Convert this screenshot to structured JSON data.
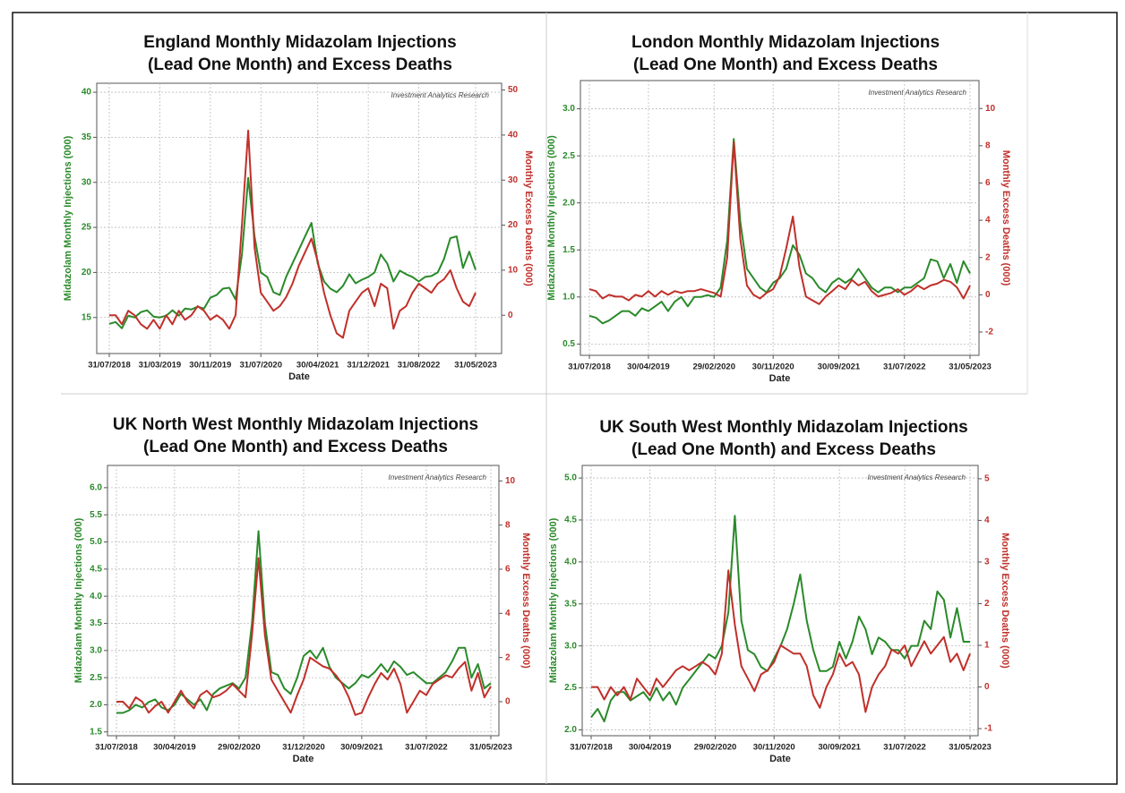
{
  "chart_data": [
    {
      "type": "line",
      "title": [
        "England Monthly Midazolam Injections",
        "(Lead One Month) and Excess Deaths"
      ],
      "x_label": "Date",
      "y_label": "Midazolam Monthly Injections (000)",
      "y2_label": "Monthly Excess Deaths (000)",
      "annotation": "Investment Analytics Research",
      "categories": [
        "31/07/2018",
        null,
        null,
        null,
        null,
        null,
        null,
        null,
        "31/03/2019",
        null,
        null,
        null,
        null,
        null,
        null,
        null,
        "30/11/2019",
        null,
        null,
        null,
        null,
        null,
        null,
        null,
        "31/07/2020",
        null,
        null,
        null,
        null,
        null,
        null,
        null,
        null,
        "30/04/2021",
        null,
        null,
        null,
        null,
        null,
        null,
        null,
        "31/12/2021",
        null,
        null,
        null,
        null,
        null,
        null,
        null,
        "31/08/2022",
        null,
        null,
        null,
        null,
        null,
        null,
        null,
        null,
        "31/05/2023"
      ],
      "series": [
        {
          "name": "Midazolam Monthly Injections (000)",
          "color": "#2a8a2a",
          "values": [
            14.3,
            14.5,
            13.8,
            15.2,
            15.0,
            15.6,
            15.8,
            15.1,
            15.0,
            15.2,
            15.8,
            15.2,
            16.0,
            15.9,
            16.2,
            16.0,
            17.2,
            17.5,
            18.2,
            18.3,
            17.0,
            22.0,
            30.5,
            24.0,
            20.0,
            19.5,
            17.8,
            17.5,
            19.5,
            21.0,
            22.5,
            24.0,
            25.5,
            21.0,
            19.0,
            18.2,
            17.8,
            18.5,
            19.8,
            18.8,
            19.2,
            19.5,
            20.0,
            22.0,
            21.0,
            19.0,
            20.2,
            19.8,
            19.5,
            19.0,
            19.5,
            19.6,
            20.0,
            21.5,
            23.8,
            24.0,
            20.5,
            22.3,
            20.3
          ]
        },
        {
          "name": "Monthly Excess Deaths (000)",
          "color": "#c0302a",
          "axis": "y2",
          "values": [
            0,
            0,
            -2,
            1,
            0,
            -2,
            -3,
            -1,
            -3,
            0,
            -2,
            1,
            -1,
            0,
            2,
            1,
            -1,
            0,
            -1,
            -3,
            0,
            20,
            41,
            15,
            5,
            3,
            1,
            2,
            4,
            7,
            11,
            14,
            17,
            12,
            5,
            0,
            -4,
            -5,
            1,
            3,
            5,
            6,
            2,
            7,
            6,
            -3,
            1,
            2,
            5,
            7,
            6,
            5,
            7,
            8,
            10,
            6,
            3,
            2,
            5
          ]
        }
      ],
      "ylim": [
        11,
        41
      ],
      "yticks": [
        15,
        20,
        25,
        30,
        35,
        40
      ],
      "y2lim": [
        -8.5,
        51.5
      ],
      "y2ticks": [
        0,
        10,
        20,
        30,
        40,
        50
      ],
      "grid": true
    },
    {
      "type": "line",
      "title": [
        "London Monthly Midazolam Injections",
        "(Lead One Month) and Excess Deaths"
      ],
      "x_label": "Date",
      "y_label": "Midazolam Monthly Injections (000)",
      "y2_label": "Monthly Excess Deaths (000)",
      "annotation": "Investment Analytics Research",
      "categories": [
        "31/07/2018",
        null,
        null,
        null,
        null,
        null,
        null,
        null,
        null,
        "30/04/2019",
        null,
        null,
        null,
        null,
        null,
        null,
        null,
        null,
        null,
        "29/02/2020",
        null,
        null,
        null,
        null,
        null,
        null,
        null,
        null,
        "30/11/2020",
        null,
        null,
        null,
        null,
        null,
        null,
        null,
        null,
        null,
        "30/09/2021",
        null,
        null,
        null,
        null,
        null,
        null,
        null,
        null,
        null,
        "31/07/2022",
        null,
        null,
        null,
        null,
        null,
        null,
        null,
        null,
        null,
        "31/05/2023"
      ],
      "series": [
        {
          "name": "Midazolam Monthly Injections (000)",
          "color": "#2a8a2a",
          "values": [
            0.8,
            0.78,
            0.72,
            0.75,
            0.8,
            0.85,
            0.85,
            0.8,
            0.88,
            0.85,
            0.9,
            0.95,
            0.85,
            0.95,
            1.0,
            0.9,
            1.0,
            1.0,
            1.02,
            1.0,
            1.1,
            1.6,
            2.68,
            1.8,
            1.3,
            1.2,
            1.1,
            1.05,
            1.15,
            1.2,
            1.3,
            1.55,
            1.45,
            1.25,
            1.2,
            1.1,
            1.05,
            1.15,
            1.2,
            1.15,
            1.2,
            1.3,
            1.2,
            1.1,
            1.05,
            1.1,
            1.1,
            1.05,
            1.1,
            1.1,
            1.15,
            1.2,
            1.4,
            1.38,
            1.2,
            1.35,
            1.15,
            1.38,
            1.25
          ]
        },
        {
          "name": "Monthly Excess Deaths (000)",
          "color": "#c0302a",
          "axis": "y2",
          "values": [
            0.3,
            0.2,
            -0.2,
            0,
            -0.1,
            -0.1,
            -0.3,
            0,
            -0.1,
            0.2,
            -0.1,
            0.2,
            0,
            0.2,
            0.1,
            0.2,
            0.2,
            0.3,
            0.2,
            0.1,
            -0.1,
            2,
            8.2,
            3,
            0.5,
            0,
            -0.2,
            0.1,
            0.3,
            1,
            2.5,
            4.2,
            1.5,
            -0.1,
            -0.3,
            -0.5,
            -0.1,
            0.2,
            0.5,
            0.3,
            0.8,
            0.5,
            0.7,
            0.2,
            -0.1,
            0,
            0.1,
            0.3,
            0,
            0.2,
            0.5,
            0.3,
            0.5,
            0.6,
            0.8,
            0.7,
            0.4,
            -0.2,
            0.5
          ]
        }
      ],
      "ylim": [
        0.38,
        3.3
      ],
      "yticks": [
        0.5,
        {
          "value": 1,
          "label": "1.0"
        },
        1.5,
        {
          "value": 2,
          "label": "2.0"
        },
        2.5,
        {
          "value": 3,
          "label": "3.0"
        }
      ],
      "y2lim": [
        -3.25,
        11.5
      ],
      "y2ticks": [
        -2,
        0,
        2,
        4,
        6,
        8,
        10
      ],
      "grid": true
    },
    {
      "type": "line",
      "title": [
        "UK North West Monthly Midazolam Injections",
        "(Lead One Month) and Excess Deaths"
      ],
      "x_label": "Date",
      "y_label": "Midazolam Monthly Injections (000)",
      "y2_label": "Monthly Excess Deaths (000)",
      "annotation": "Investment Analytics Research",
      "categories": [
        "31/07/2018",
        null,
        null,
        null,
        null,
        null,
        null,
        null,
        null,
        "30/04/2019",
        null,
        null,
        null,
        null,
        null,
        null,
        null,
        null,
        null,
        "29/02/2020",
        null,
        null,
        null,
        null,
        null,
        null,
        null,
        null,
        null,
        "31/12/2020",
        null,
        null,
        null,
        null,
        null,
        null,
        null,
        null,
        "30/09/2021",
        null,
        null,
        null,
        null,
        null,
        null,
        null,
        null,
        null,
        "31/07/2022",
        null,
        null,
        null,
        null,
        null,
        null,
        null,
        null,
        null,
        "31/05/2023"
      ],
      "series": [
        {
          "name": "Midazolam Monthly Injections (000)",
          "color": "#2a8a2a",
          "values": [
            1.85,
            1.85,
            1.9,
            2.0,
            1.95,
            2.05,
            2.1,
            1.95,
            1.9,
            2.0,
            2.2,
            2.1,
            2.0,
            2.1,
            1.9,
            2.2,
            2.3,
            2.35,
            2.4,
            2.3,
            2.5,
            3.5,
            5.2,
            3.5,
            2.6,
            2.55,
            2.3,
            2.2,
            2.5,
            2.9,
            3.0,
            2.85,
            3.05,
            2.7,
            2.5,
            2.4,
            2.3,
            2.4,
            2.55,
            2.5,
            2.6,
            2.75,
            2.6,
            2.8,
            2.7,
            2.55,
            2.6,
            2.5,
            2.4,
            2.4,
            2.5,
            2.6,
            2.8,
            3.05,
            3.05,
            2.5,
            2.75,
            2.3,
            2.4
          ]
        },
        {
          "name": "Monthly Excess Deaths (000)",
          "color": "#c0302a",
          "axis": "y2",
          "values": [
            0,
            0,
            -0.3,
            0.2,
            0,
            -0.5,
            -0.2,
            0,
            -0.5,
            0,
            0.5,
            0,
            -0.3,
            0.3,
            0.5,
            0.2,
            0.3,
            0.5,
            0.8,
            0.5,
            0.2,
            3,
            6.5,
            3,
            1,
            0.5,
            0,
            -0.5,
            0.3,
            1,
            2,
            1.8,
            1.6,
            1.5,
            1.2,
            0.8,
            0.2,
            -0.6,
            -0.5,
            0.2,
            0.8,
            1.3,
            1,
            1.5,
            0.8,
            -0.5,
            0,
            0.5,
            0.3,
            0.8,
            1,
            1.2,
            1.1,
            1.5,
            1.8,
            0.5,
            1.3,
            0.2,
            0.7
          ]
        }
      ],
      "ylim": [
        1.43,
        6.41
      ],
      "yticks": [
        1.5,
        {
          "value": 2,
          "label": "2.0"
        },
        2.5,
        {
          "value": 3,
          "label": "3.0"
        },
        3.5,
        {
          "value": 4,
          "label": "4.0"
        },
        4.5,
        {
          "value": 5,
          "label": "5.0"
        },
        5.5,
        {
          "value": 6,
          "label": "6.0"
        }
      ],
      "y2lim": [
        -1.54,
        10.7
      ],
      "y2ticks": [
        0,
        2,
        4,
        6,
        8,
        10
      ],
      "grid": true
    },
    {
      "type": "line",
      "title": [
        "UK South West Monthly Midazolam Injections",
        "(Lead One Month) and Excess Deaths"
      ],
      "x_label": "Date",
      "y_label": "Midazolam Monthly Injections (000)",
      "y2_label": "Monthly Excess Deaths (000)",
      "annotation": "Investment Analytics Research",
      "categories": [
        "31/07/2018",
        null,
        null,
        null,
        null,
        null,
        null,
        null,
        null,
        "30/04/2019",
        null,
        null,
        null,
        null,
        null,
        null,
        null,
        null,
        null,
        "29/02/2020",
        null,
        null,
        null,
        null,
        null,
        null,
        null,
        null,
        "30/11/2020",
        null,
        null,
        null,
        null,
        null,
        null,
        null,
        null,
        null,
        "30/09/2021",
        null,
        null,
        null,
        null,
        null,
        null,
        null,
        null,
        null,
        "31/07/2022",
        null,
        null,
        null,
        null,
        null,
        null,
        null,
        null,
        null,
        "31/05/2023"
      ],
      "series": [
        {
          "name": "Midazolam Monthly Injections (000)",
          "color": "#2a8a2a",
          "values": [
            2.15,
            2.25,
            2.1,
            2.35,
            2.45,
            2.45,
            2.35,
            2.4,
            2.45,
            2.35,
            2.5,
            2.35,
            2.45,
            2.3,
            2.5,
            2.6,
            2.7,
            2.8,
            2.9,
            2.85,
            3.0,
            3.4,
            4.55,
            3.3,
            2.95,
            2.9,
            2.75,
            2.7,
            2.85,
            3.0,
            3.2,
            3.5,
            3.85,
            3.3,
            2.95,
            2.7,
            2.7,
            2.75,
            3.05,
            2.85,
            3.05,
            3.35,
            3.2,
            2.9,
            3.1,
            3.05,
            2.95,
            2.95,
            2.85,
            3.0,
            3.0,
            3.3,
            3.2,
            3.65,
            3.55,
            3.1,
            3.45,
            3.05,
            3.05
          ]
        },
        {
          "name": "Monthly Excess Deaths (000)",
          "color": "#c0302a",
          "axis": "y2",
          "values": [
            0,
            0,
            -0.3,
            0,
            -0.2,
            0,
            -0.3,
            0.2,
            0,
            -0.2,
            0.2,
            0,
            0.2,
            0.4,
            0.5,
            0.4,
            0.5,
            0.6,
            0.5,
            0.3,
            0.8,
            2.8,
            1.5,
            0.5,
            0.2,
            -0.1,
            0.3,
            0.4,
            0.6,
            1,
            0.9,
            0.8,
            0.8,
            0.5,
            -0.2,
            -0.5,
            0,
            0.3,
            0.8,
            0.5,
            0.6,
            0.3,
            -0.6,
            0,
            0.3,
            0.5,
            0.9,
            0.8,
            1,
            0.5,
            0.8,
            1.1,
            0.8,
            1.0,
            1.2,
            0.6,
            0.8,
            0.4,
            0.8
          ]
        }
      ],
      "ylim": [
        1.93,
        5.15
      ],
      "yticks": [
        {
          "value": 2,
          "label": "2.0"
        },
        2.5,
        {
          "value": 3,
          "label": "3.0"
        },
        3.5,
        {
          "value": 4,
          "label": "4.0"
        },
        4.5,
        {
          "value": 5,
          "label": "5.0"
        }
      ],
      "y2lim": [
        -1.17,
        5.32
      ],
      "y2ticks": [
        -1,
        0,
        1,
        2,
        3,
        4,
        5
      ],
      "grid": true
    }
  ]
}
